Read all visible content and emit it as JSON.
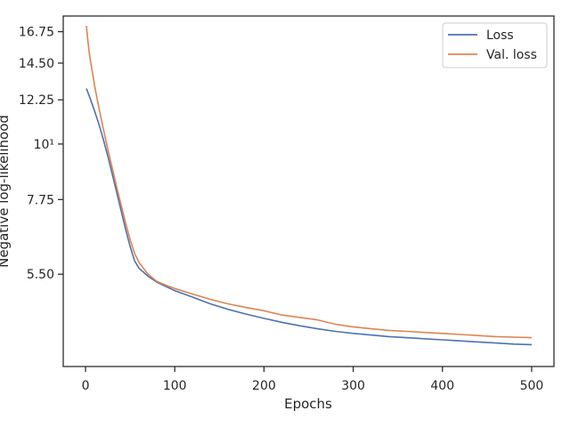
{
  "chart_data": {
    "type": "line",
    "title": "",
    "xlabel": "Epochs",
    "ylabel": "Negative log-likelihood",
    "xlim": [
      -25,
      525
    ],
    "ylim": [
      3.6,
      18.0
    ],
    "yscale": "log",
    "grid": false,
    "legend_position": "top-right",
    "x_ticks": [
      0,
      100,
      200,
      300,
      400,
      500
    ],
    "x_tick_labels": [
      "0",
      "100",
      "200",
      "300",
      "400",
      "500"
    ],
    "y_ticks": [
      5.5,
      7.75,
      10,
      12.25,
      14.5,
      16.75
    ],
    "y_tick_labels": [
      "5.50",
      "7.75",
      "10¹",
      "12.25",
      "14.50",
      "16.75"
    ],
    "series": [
      {
        "name": "Loss",
        "color": "#4c72b0",
        "x": [
          1,
          5,
          10,
          15,
          20,
          25,
          30,
          35,
          40,
          45,
          50,
          55,
          60,
          65,
          70,
          80,
          90,
          100,
          120,
          140,
          160,
          180,
          200,
          220,
          240,
          260,
          280,
          300,
          320,
          340,
          360,
          380,
          400,
          420,
          440,
          460,
          480,
          500
        ],
        "y": [
          12.9,
          12.35,
          11.65,
          10.95,
          10.2,
          9.45,
          8.7,
          8.0,
          7.35,
          6.75,
          6.25,
          5.85,
          5.65,
          5.55,
          5.45,
          5.3,
          5.2,
          5.1,
          4.95,
          4.8,
          4.68,
          4.58,
          4.49,
          4.41,
          4.34,
          4.28,
          4.23,
          4.19,
          4.16,
          4.13,
          4.11,
          4.09,
          4.07,
          4.05,
          4.03,
          4.01,
          3.99,
          3.98
        ]
      },
      {
        "name": "Val. loss",
        "color": "#dd8452",
        "x": [
          1,
          3,
          5,
          8,
          10,
          15,
          20,
          25,
          30,
          35,
          40,
          45,
          50,
          55,
          60,
          65,
          70,
          80,
          90,
          100,
          120,
          140,
          160,
          180,
          200,
          220,
          240,
          260,
          280,
          300,
          320,
          340,
          360,
          380,
          400,
          420,
          440,
          460,
          480,
          500
        ],
        "y": [
          17.2,
          15.8,
          14.8,
          13.8,
          13.1,
          11.8,
          10.7,
          9.75,
          8.95,
          8.2,
          7.55,
          6.95,
          6.45,
          6.05,
          5.8,
          5.65,
          5.5,
          5.32,
          5.23,
          5.15,
          5.02,
          4.9,
          4.8,
          4.72,
          4.65,
          4.56,
          4.51,
          4.46,
          4.37,
          4.32,
          4.28,
          4.25,
          4.23,
          4.21,
          4.19,
          4.17,
          4.15,
          4.13,
          4.12,
          4.11
        ]
      }
    ]
  }
}
